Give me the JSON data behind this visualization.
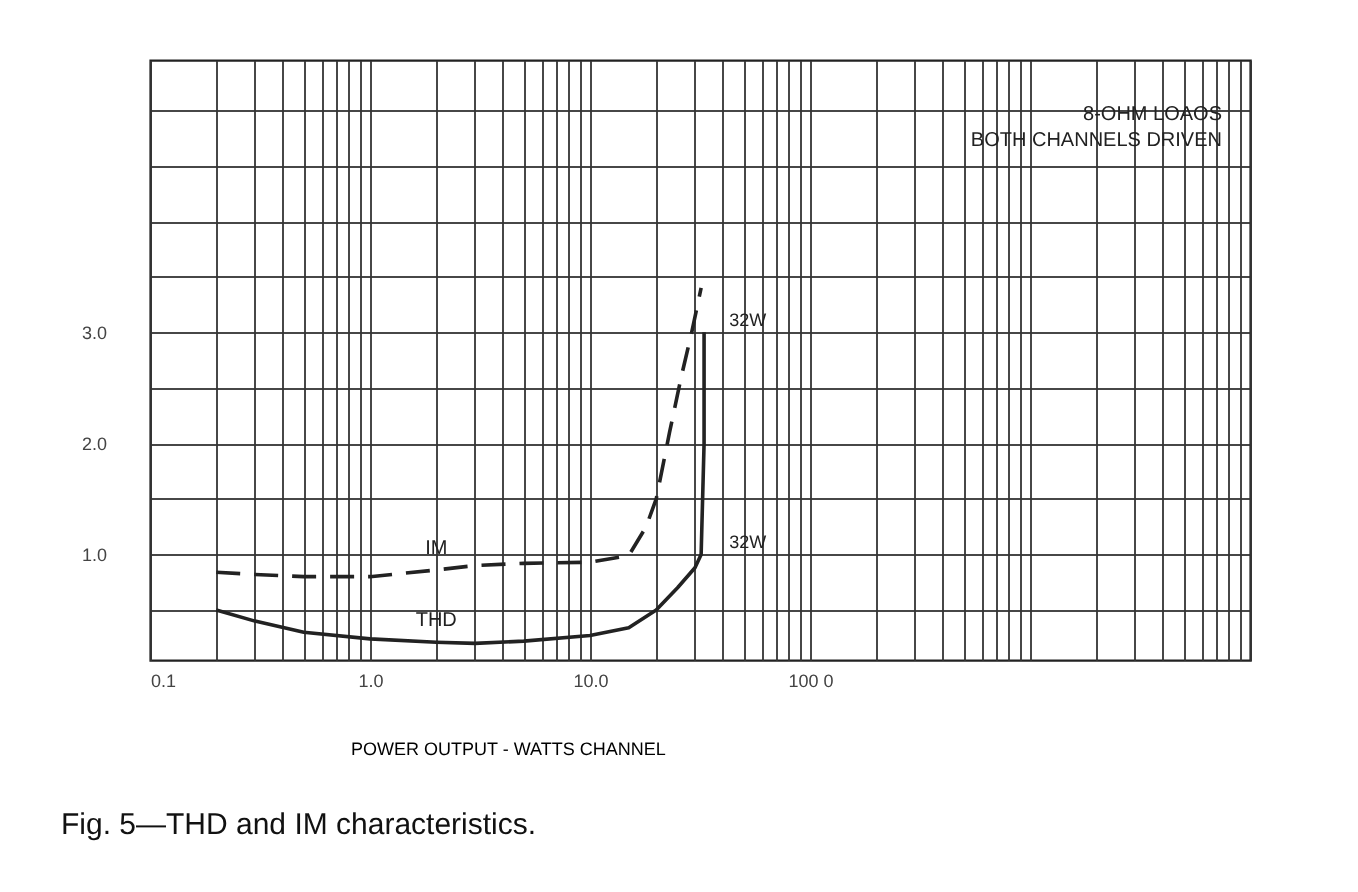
{
  "chart_data": {
    "type": "line",
    "title": "Fig. 5—THD and IM characteristics.",
    "xlabel": "POWER OUTPUT - WATTS CHANNEL",
    "log": "x",
    "grid": true,
    "xlim": [
      0.1,
      10000
    ],
    "xticks": [
      {
        "value": 0.1,
        "label": "0.1"
      },
      {
        "value": 0.2,
        "label": null
      },
      {
        "value": 0.3,
        "label": null
      },
      {
        "value": 0.4,
        "label": null
      },
      {
        "value": 0.5,
        "label": null
      },
      {
        "value": 0.6,
        "label": null
      },
      {
        "value": 0.7,
        "label": null
      },
      {
        "value": 0.8,
        "label": null
      },
      {
        "value": 0.9,
        "label": null
      },
      {
        "value": 1,
        "label": "1.0"
      },
      {
        "value": 2,
        "label": null
      },
      {
        "value": 3,
        "label": null
      },
      {
        "value": 4,
        "label": null
      },
      {
        "value": 5,
        "label": null
      },
      {
        "value": 6,
        "label": null
      },
      {
        "value": 7,
        "label": null
      },
      {
        "value": 8,
        "label": null
      },
      {
        "value": 9,
        "label": null
      },
      {
        "value": 10,
        "label": "10.0"
      },
      {
        "value": 20,
        "label": null
      },
      {
        "value": 30,
        "label": null
      },
      {
        "value": 40,
        "label": null
      },
      {
        "value": 50,
        "label": null
      },
      {
        "value": 60,
        "label": null
      },
      {
        "value": 70,
        "label": null
      },
      {
        "value": 80,
        "label": null
      },
      {
        "value": 90,
        "label": null
      },
      {
        "value": 100,
        "label": "100 0"
      },
      {
        "value": 200,
        "label": null
      },
      {
        "value": 300,
        "label": null
      },
      {
        "value": 400,
        "label": null
      },
      {
        "value": 500,
        "label": null
      },
      {
        "value": 600,
        "label": null
      },
      {
        "value": 700,
        "label": null
      },
      {
        "value": 800,
        "label": null
      },
      {
        "value": 900,
        "label": null
      },
      {
        "value": 1000,
        "label": null
      },
      {
        "value": 2000,
        "label": null
      },
      {
        "value": 3000,
        "label": null
      },
      {
        "value": 4000,
        "label": null
      },
      {
        "value": 5000,
        "label": null
      },
      {
        "value": 6000,
        "label": null
      },
      {
        "value": 7000,
        "label": null
      },
      {
        "value": 8000,
        "label": null
      },
      {
        "value": 9000,
        "label": null
      },
      {
        "value": 10000,
        "label": null
      }
    ],
    "ylim": [
      0.05,
      5.45
    ],
    "yticks": [
      {
        "value": 0.5,
        "label": null
      },
      {
        "value": 1,
        "label": "1.0"
      },
      {
        "value": 1.5,
        "label": null
      },
      {
        "value": 2,
        "label": "2.0"
      },
      {
        "value": 2.5,
        "label": null
      },
      {
        "value": 3,
        "label": "3.0"
      },
      {
        "value": 3.5,
        "label": null
      },
      {
        "value": 4,
        "label": null
      },
      {
        "value": 4.5,
        "label": null
      },
      {
        "value": 5,
        "label": null
      }
    ],
    "series": [
      {
        "name": "IM",
        "color": "#222222",
        "line_style": "dashed",
        "x": [
          0.2,
          0.3,
          0.5,
          1,
          2,
          3,
          5,
          10,
          15,
          18,
          20,
          23,
          26,
          29,
          32
        ],
        "values": [
          0.84,
          0.82,
          0.8,
          0.8,
          0.86,
          0.9,
          0.92,
          0.93,
          0.99,
          1.25,
          1.5,
          2.1,
          2.6,
          3.0,
          3.4
        ]
      },
      {
        "name": "THD",
        "color": "#222222",
        "line_style": "solid",
        "x": [
          0.2,
          0.3,
          0.5,
          1,
          2,
          3,
          5,
          10,
          15,
          20,
          25,
          30,
          32,
          33,
          33
        ],
        "values": [
          0.5,
          0.4,
          0.3,
          0.24,
          0.21,
          0.2,
          0.22,
          0.27,
          0.34,
          0.5,
          0.7,
          0.88,
          1.0,
          2.0,
          3.0
        ]
      }
    ],
    "annotations": [
      "8-OHM LOAOS\nBOTH CHANNELS DRIVEN",
      {
        "text": "32W",
        "x": 32,
        "y": 3.0
      },
      {
        "text": "32W",
        "x": 32,
        "y": 1.0
      }
    ]
  }
}
